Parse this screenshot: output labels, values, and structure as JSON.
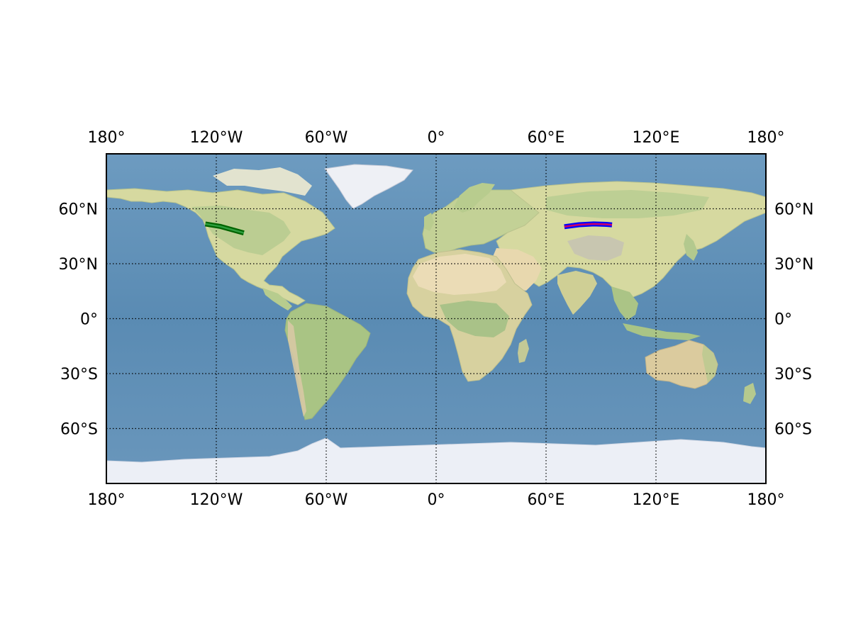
{
  "chart_data": {
    "type": "map",
    "projection": "equirectangular",
    "lon_range": [
      -180,
      180
    ],
    "lat_range": [
      -90,
      90
    ],
    "grid": "on",
    "meridians": [
      -180,
      -120,
      -60,
      0,
      60,
      120,
      180
    ],
    "meridian_labels": [
      "180°",
      "120°W",
      "60°W",
      "0°",
      "60°E",
      "120°E",
      "180°"
    ],
    "parallels": [
      60,
      30,
      0,
      -30,
      -60
    ],
    "parallel_labels": [
      "60°N",
      "30°N",
      "0°",
      "30°S",
      "60°S"
    ],
    "tracks": [
      {
        "outer_color": "#006400",
        "inner_color": "#2e9e3e",
        "points": [
          [
            -126,
            51.7
          ],
          [
            -118,
            50.4
          ],
          [
            -110,
            48.2
          ],
          [
            -105,
            46.8
          ]
        ]
      },
      {
        "outer_color": "#0000ff",
        "inner_color": "#cc0066",
        "points": [
          [
            70,
            50.2
          ],
          [
            78,
            51.3
          ],
          [
            86,
            51.7
          ],
          [
            93,
            51.5
          ],
          [
            96,
            51.2
          ]
        ]
      }
    ],
    "colors": {
      "ocean": "#5f8fb4",
      "land": "#d9dca4",
      "land_green": "#a9c48a",
      "desert": "#e8d9b0",
      "ice": "#eaedf5",
      "frame": "#000000"
    }
  }
}
